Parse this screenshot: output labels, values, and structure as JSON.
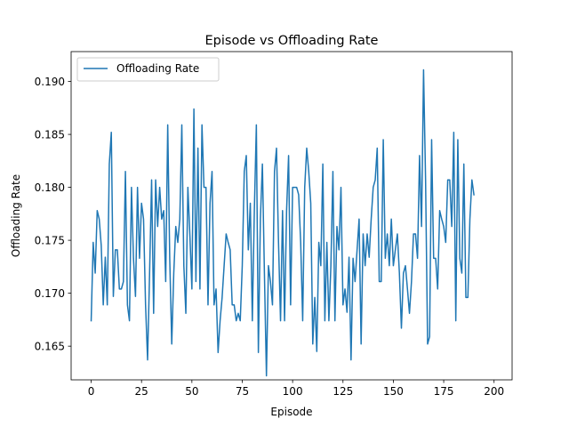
{
  "chart_data": {
    "type": "line",
    "title": "Episode vs Offloading Rate",
    "xlabel": "Episode",
    "ylabel": "Offloading Rate",
    "xlim": [
      -9.95,
      208.95
    ],
    "ylim": [
      0.16182,
      0.19282
    ],
    "xticks": [
      0,
      25,
      50,
      75,
      100,
      125,
      150,
      175,
      200
    ],
    "yticks": [
      0.165,
      0.17,
      0.175,
      0.18,
      0.185,
      0.19
    ],
    "xtick_labels": [
      "0",
      "25",
      "50",
      "75",
      "100",
      "125",
      "150",
      "175",
      "200"
    ],
    "ytick_labels": [
      "0.165",
      "0.170",
      "0.175",
      "0.180",
      "0.185",
      "0.190"
    ],
    "grid": false,
    "legend_position": "upper left",
    "series": [
      {
        "name": "Offloading Rate",
        "color": "#1f77b4",
        "x_start": 0,
        "x_step": 1,
        "values": [
          0.1674,
          0.1748,
          0.1719,
          0.1778,
          0.177,
          0.1745,
          0.1689,
          0.1734,
          0.1689,
          0.1822,
          0.1852,
          0.1697,
          0.1741,
          0.1741,
          0.1704,
          0.1704,
          0.1711,
          0.1815,
          0.1689,
          0.1674,
          0.18,
          0.1733,
          0.1697,
          0.18,
          0.1733,
          0.1785,
          0.177,
          0.1689,
          0.1637,
          0.1719,
          0.1807,
          0.1681,
          0.1807,
          0.1763,
          0.18,
          0.177,
          0.1778,
          0.1711,
          0.1859,
          0.1733,
          0.1652,
          0.1719,
          0.1763,
          0.1748,
          0.177,
          0.1859,
          0.1726,
          0.1681,
          0.18,
          0.1755,
          0.1704,
          0.1874,
          0.1711,
          0.1837,
          0.1704,
          0.1859,
          0.18,
          0.18,
          0.1689,
          0.1785,
          0.1815,
          0.1689,
          0.1704,
          0.1644,
          0.1674,
          0.1696,
          0.1726,
          0.1756,
          0.1748,
          0.1741,
          0.1689,
          0.1689,
          0.1674,
          0.1681,
          0.1674,
          0.1726,
          0.1815,
          0.183,
          0.1741,
          0.1785,
          0.1674,
          0.1778,
          0.1859,
          0.1644,
          0.177,
          0.1822,
          0.1719,
          0.1622,
          0.1726,
          0.1711,
          0.1689,
          0.1815,
          0.1837,
          0.1748,
          0.1674,
          0.1778,
          0.1674,
          0.1778,
          0.183,
          0.1689,
          0.18,
          0.18,
          0.18,
          0.1793,
          0.1748,
          0.1674,
          0.18,
          0.1837,
          0.1815,
          0.1785,
          0.1652,
          0.1696,
          0.1645,
          0.1748,
          0.1726,
          0.1822,
          0.1674,
          0.1748,
          0.1674,
          0.1726,
          0.1815,
          0.1674,
          0.1763,
          0.1741,
          0.18,
          0.1689,
          0.1704,
          0.1682,
          0.1734,
          0.1637,
          0.1733,
          0.1711,
          0.1741,
          0.177,
          0.1652,
          0.1756,
          0.1726,
          0.1756,
          0.1734,
          0.177,
          0.18,
          0.1807,
          0.1837,
          0.1711,
          0.1711,
          0.1845,
          0.1733,
          0.1756,
          0.1726,
          0.177,
          0.1726,
          0.1741,
          0.1756,
          0.1719,
          0.1667,
          0.1719,
          0.1726,
          0.1704,
          0.1681,
          0.1711,
          0.1756,
          0.1756,
          0.1733,
          0.183,
          0.1763,
          0.1911,
          0.1807,
          0.1652,
          0.1659,
          0.1845,
          0.1733,
          0.1733,
          0.1704,
          0.1778,
          0.177,
          0.1763,
          0.1748,
          0.1807,
          0.1807,
          0.1763,
          0.1852,
          0.1674,
          0.1845,
          0.1733,
          0.1719,
          0.1822,
          0.1696,
          0.1696,
          0.177,
          0.1807,
          0.1793
        ]
      }
    ]
  }
}
